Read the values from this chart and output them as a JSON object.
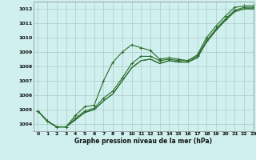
{
  "title": "Graphe pression niveau de la mer (hPa)",
  "bg_color": "#cff0ee",
  "grid_color": "#b0c8c8",
  "line_color": "#2a6b2a",
  "ylim": [
    1003.5,
    1012.5
  ],
  "xlim": [
    -0.5,
    23
  ],
  "yticks": [
    1004,
    1005,
    1006,
    1007,
    1008,
    1009,
    1010,
    1011,
    1012
  ],
  "xticks": [
    0,
    1,
    2,
    3,
    4,
    5,
    6,
    7,
    8,
    9,
    10,
    11,
    12,
    13,
    14,
    15,
    16,
    17,
    18,
    19,
    20,
    21,
    22,
    23
  ],
  "series1": [
    1004.9,
    1004.2,
    1003.8,
    1003.8,
    1004.6,
    1005.2,
    1005.3,
    1007.0,
    1008.3,
    1009.0,
    1009.5,
    1009.3,
    1009.1,
    1008.5,
    1008.6,
    1008.5,
    1008.4,
    1008.8,
    1010.0,
    1010.8,
    1011.5,
    1012.1,
    1012.2,
    1012.2
  ],
  "series2": [
    1004.9,
    1004.2,
    1003.8,
    1003.8,
    1004.4,
    1004.9,
    1005.1,
    1005.8,
    1006.3,
    1007.2,
    1008.2,
    1008.7,
    1008.7,
    1008.4,
    1008.5,
    1008.4,
    1008.4,
    1008.7,
    1009.8,
    1010.6,
    1011.3,
    1011.9,
    1012.1,
    1012.1
  ],
  "series3": [
    1004.9,
    1004.2,
    1003.8,
    1003.8,
    1004.3,
    1004.8,
    1005.0,
    1005.6,
    1006.1,
    1007.0,
    1007.9,
    1008.4,
    1008.5,
    1008.2,
    1008.4,
    1008.3,
    1008.3,
    1008.6,
    1009.7,
    1010.5,
    1011.2,
    1011.8,
    1012.0,
    1012.0
  ],
  "series4": [
    1004.9,
    1004.2,
    1003.8,
    1003.8,
    1004.3,
    1004.8,
    1005.0,
    1005.6,
    1006.1,
    1007.0,
    1007.9,
    1008.4,
    1008.5,
    1008.2,
    1008.4,
    1008.3,
    1008.3,
    1008.6,
    1009.7,
    1010.5,
    1011.2,
    1011.8,
    1012.0,
    1012.0
  ],
  "linewidth": 0.8,
  "marker": "+",
  "marker_size": 3.0,
  "tick_fontsize": 4.5,
  "label_fontsize": 5.5
}
